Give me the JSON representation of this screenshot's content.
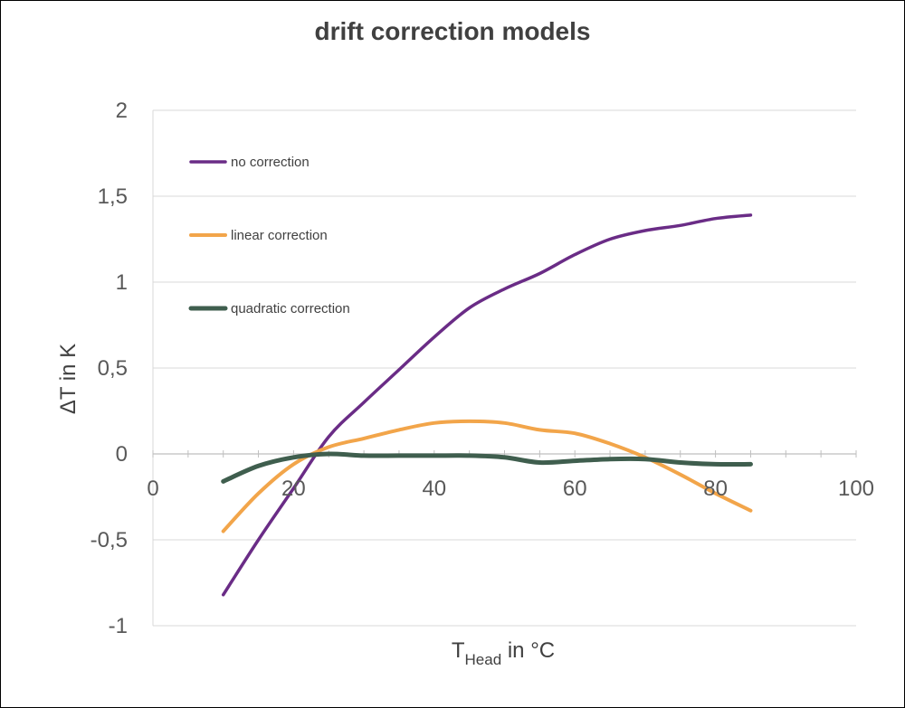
{
  "chart_data": {
    "type": "line",
    "title": "drift correction models",
    "xlabel_main": "T",
    "xlabel_sub": "Head",
    "xlabel_rest": " in °C",
    "ylabel": "ΔT in K",
    "xlim": [
      0,
      100
    ],
    "ylim": [
      -1,
      2
    ],
    "x_ticks": [
      "0",
      "20",
      "40",
      "60",
      "80",
      "100"
    ],
    "y_ticks": [
      "-1",
      "-0,5",
      "0",
      "0,5",
      "1",
      "1,5",
      "2"
    ],
    "grid": "horizontal",
    "legend_position": "top-left",
    "series": [
      {
        "name": "no correction",
        "color": "#6a2c86",
        "stroke_width": 3.5,
        "points": [
          [
            10,
            -0.82
          ],
          [
            15,
            -0.5
          ],
          [
            20,
            -0.2
          ],
          [
            25,
            0.1
          ],
          [
            30,
            0.3
          ],
          [
            35,
            0.49
          ],
          [
            40,
            0.68
          ],
          [
            45,
            0.85
          ],
          [
            50,
            0.96
          ],
          [
            55,
            1.05
          ],
          [
            60,
            1.16
          ],
          [
            65,
            1.25
          ],
          [
            70,
            1.3
          ],
          [
            75,
            1.33
          ],
          [
            80,
            1.37
          ],
          [
            85,
            1.39
          ]
        ]
      },
      {
        "name": "linear correction",
        "color": "#f2a54a",
        "stroke_width": 4,
        "points": [
          [
            10,
            -0.45
          ],
          [
            15,
            -0.23
          ],
          [
            20,
            -0.06
          ],
          [
            25,
            0.04
          ],
          [
            30,
            0.09
          ],
          [
            35,
            0.14
          ],
          [
            40,
            0.18
          ],
          [
            45,
            0.19
          ],
          [
            50,
            0.18
          ],
          [
            55,
            0.14
          ],
          [
            60,
            0.12
          ],
          [
            65,
            0.06
          ],
          [
            70,
            -0.02
          ],
          [
            75,
            -0.12
          ],
          [
            80,
            -0.23
          ],
          [
            85,
            -0.33
          ]
        ]
      },
      {
        "name": "quadratic correction",
        "color": "#3f5e4e",
        "stroke_width": 5,
        "points": [
          [
            10,
            -0.16
          ],
          [
            15,
            -0.07
          ],
          [
            20,
            -0.02
          ],
          [
            25,
            0.0
          ],
          [
            30,
            -0.01
          ],
          [
            35,
            -0.01
          ],
          [
            40,
            -0.01
          ],
          [
            45,
            -0.01
          ],
          [
            50,
            -0.02
          ],
          [
            55,
            -0.05
          ],
          [
            60,
            -0.04
          ],
          [
            65,
            -0.03
          ],
          [
            70,
            -0.03
          ],
          [
            75,
            -0.05
          ],
          [
            80,
            -0.06
          ],
          [
            85,
            -0.06
          ]
        ]
      }
    ]
  }
}
